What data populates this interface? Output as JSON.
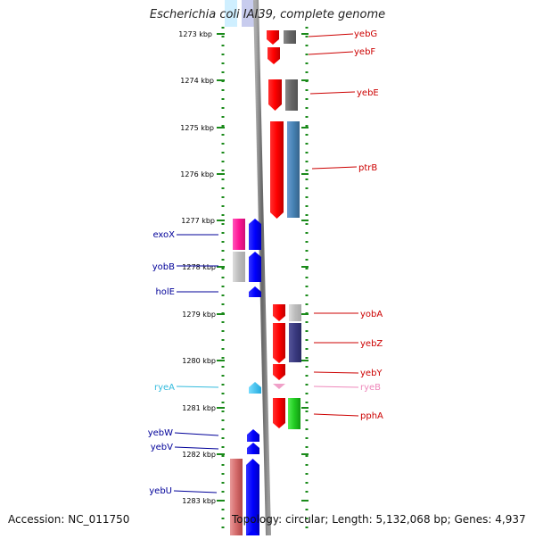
{
  "title": "Escherichia coli IAI39, complete genome",
  "footer": {
    "accession": "Accession: NC_011750",
    "summary": "Topology: circular; Length: 5,132,068 bp; Genes: 4,937"
  },
  "scale_labels": [
    "1273 kbp",
    "1274 kbp",
    "1275 kbp",
    "1276 kbp",
    "1277 kbp",
    "1278 kbp",
    "1279 kbp",
    "1280 kbp",
    "1281 kbp",
    "1282 kbp",
    "1283 kbp"
  ],
  "genes_right": [
    {
      "name": "yebG",
      "color": "#cc0000"
    },
    {
      "name": "yebF",
      "color": "#cc0000"
    },
    {
      "name": "yebE",
      "color": "#cc0000"
    },
    {
      "name": "ptrB",
      "color": "#cc0000"
    },
    {
      "name": "yobA",
      "color": "#cc0000"
    },
    {
      "name": "yebZ",
      "color": "#cc0000"
    },
    {
      "name": "yebY",
      "color": "#cc0000"
    },
    {
      "name": "ryeB",
      "color": "#ee88bb"
    },
    {
      "name": "pphA",
      "color": "#cc0000"
    }
  ],
  "genes_left": [
    {
      "name": "exoX",
      "color": "#000099"
    },
    {
      "name": "yobB",
      "color": "#000099"
    },
    {
      "name": "holE",
      "color": "#000099"
    },
    {
      "name": "ryeA",
      "color": "#33bbdd"
    },
    {
      "name": "yebW",
      "color": "#000099"
    },
    {
      "name": "yebV",
      "color": "#000099"
    },
    {
      "name": "yebU",
      "color": "#000099"
    }
  ]
}
